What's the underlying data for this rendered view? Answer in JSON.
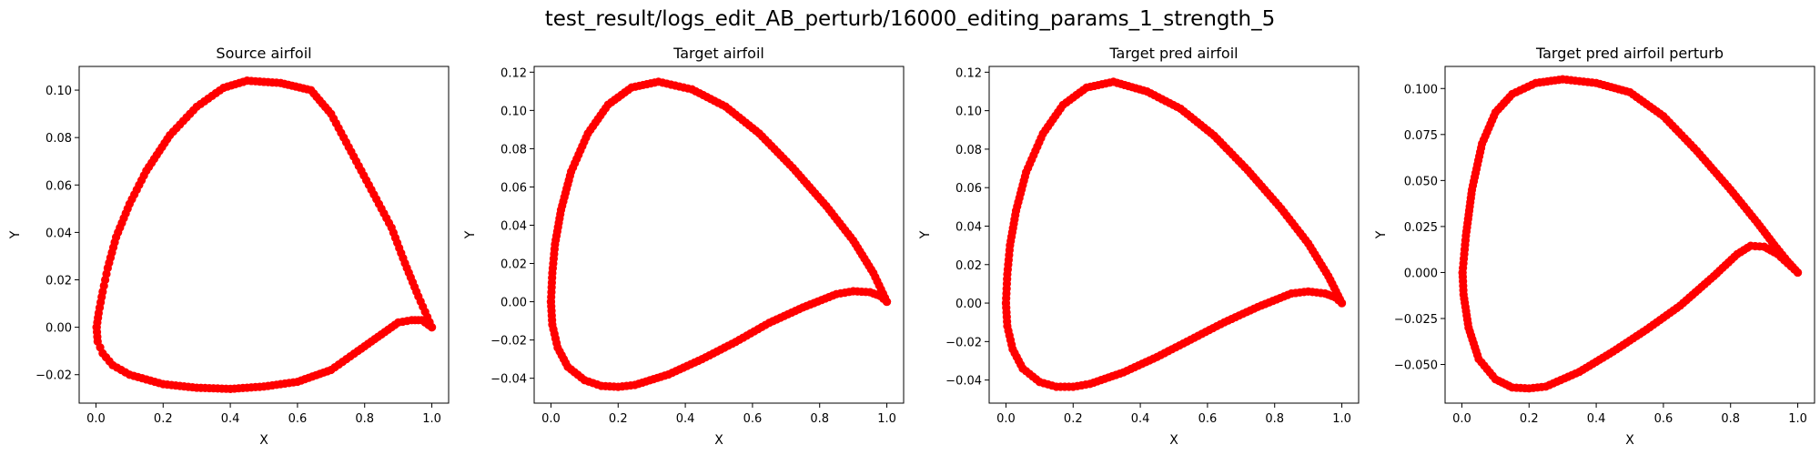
{
  "suptitle": "test_result/logs_edit_AB_perturb/16000_editing_params_1_strength_5",
  "chart_data": [
    {
      "type": "scatter",
      "title": "Source airfoil",
      "xlabel": "X",
      "ylabel": "Y",
      "xlim": [
        -0.05,
        1.05
      ],
      "ylim": [
        -0.032,
        0.11
      ],
      "xticks": [
        "0.0",
        "0.2",
        "0.4",
        "0.6",
        "0.8",
        "1.0"
      ],
      "yticks": [
        "−0.02",
        "0.00",
        "0.02",
        "0.04",
        "0.06",
        "0.08",
        "0.10"
      ],
      "color": "#ff0000",
      "upper": [
        [
          1.0,
          0.0
        ],
        [
          0.96,
          0.013
        ],
        [
          0.92,
          0.027
        ],
        [
          0.88,
          0.042
        ],
        [
          0.82,
          0.058
        ],
        [
          0.76,
          0.074
        ],
        [
          0.7,
          0.09
        ],
        [
          0.64,
          0.1
        ],
        [
          0.55,
          0.103
        ],
        [
          0.45,
          0.104
        ],
        [
          0.38,
          0.101
        ],
        [
          0.3,
          0.093
        ],
        [
          0.22,
          0.081
        ],
        [
          0.15,
          0.066
        ],
        [
          0.1,
          0.052
        ],
        [
          0.06,
          0.038
        ],
        [
          0.035,
          0.025
        ],
        [
          0.02,
          0.015
        ],
        [
          0.008,
          0.006
        ],
        [
          0.002,
          0.0
        ]
      ],
      "lower": [
        [
          0.002,
          0.0
        ],
        [
          0.005,
          -0.006
        ],
        [
          0.02,
          -0.011
        ],
        [
          0.05,
          -0.016
        ],
        [
          0.1,
          -0.02
        ],
        [
          0.2,
          -0.024
        ],
        [
          0.3,
          -0.0255
        ],
        [
          0.4,
          -0.026
        ],
        [
          0.5,
          -0.025
        ],
        [
          0.6,
          -0.023
        ],
        [
          0.7,
          -0.018
        ],
        [
          0.78,
          -0.01
        ],
        [
          0.85,
          -0.003
        ],
        [
          0.9,
          0.002
        ],
        [
          0.94,
          0.003
        ],
        [
          0.97,
          0.003
        ],
        [
          1.0,
          0.0
        ]
      ]
    },
    {
      "type": "scatter",
      "title": "Target airfoil",
      "xlabel": "X",
      "ylabel": "Y",
      "xlim": [
        -0.05,
        1.05
      ],
      "ylim": [
        -0.053,
        0.123
      ],
      "xticks": [
        "0.0",
        "0.2",
        "0.4",
        "0.6",
        "0.8",
        "1.0"
      ],
      "yticks": [
        "−0.04",
        "−0.02",
        "0.00",
        "0.02",
        "0.04",
        "0.06",
        "0.08",
        "0.10",
        "0.12"
      ],
      "color": "#ff0000",
      "upper": [
        [
          1.0,
          0.0
        ],
        [
          0.96,
          0.015
        ],
        [
          0.9,
          0.032
        ],
        [
          0.82,
          0.05
        ],
        [
          0.72,
          0.07
        ],
        [
          0.62,
          0.088
        ],
        [
          0.52,
          0.102
        ],
        [
          0.42,
          0.111
        ],
        [
          0.32,
          0.115
        ],
        [
          0.24,
          0.112
        ],
        [
          0.17,
          0.103
        ],
        [
          0.11,
          0.088
        ],
        [
          0.06,
          0.068
        ],
        [
          0.03,
          0.048
        ],
        [
          0.012,
          0.03
        ],
        [
          0.004,
          0.015
        ],
        [
          0.0,
          0.0
        ]
      ],
      "lower": [
        [
          0.0,
          0.0
        ],
        [
          0.004,
          -0.012
        ],
        [
          0.02,
          -0.024
        ],
        [
          0.05,
          -0.034
        ],
        [
          0.1,
          -0.041
        ],
        [
          0.15,
          -0.044
        ],
        [
          0.2,
          -0.0445
        ],
        [
          0.25,
          -0.0435
        ],
        [
          0.35,
          -0.038
        ],
        [
          0.45,
          -0.03
        ],
        [
          0.55,
          -0.021
        ],
        [
          0.65,
          -0.011
        ],
        [
          0.75,
          -0.003
        ],
        [
          0.85,
          0.004
        ],
        [
          0.9,
          0.0055
        ],
        [
          0.95,
          0.005
        ],
        [
          0.98,
          0.003
        ],
        [
          1.0,
          0.0
        ]
      ]
    },
    {
      "type": "scatter",
      "title": "Target pred airfoil",
      "xlabel": "X",
      "ylabel": "Y",
      "xlim": [
        -0.05,
        1.05
      ],
      "ylim": [
        -0.052,
        0.123
      ],
      "xticks": [
        "0.0",
        "0.2",
        "0.4",
        "0.6",
        "0.8",
        "1.0"
      ],
      "yticks": [
        "−0.04",
        "−0.02",
        "0.00",
        "0.02",
        "0.04",
        "0.06",
        "0.08",
        "0.10",
        "0.12"
      ],
      "color": "#ff0000",
      "upper": [
        [
          1.0,
          0.0
        ],
        [
          0.96,
          0.014
        ],
        [
          0.9,
          0.031
        ],
        [
          0.82,
          0.049
        ],
        [
          0.72,
          0.069
        ],
        [
          0.62,
          0.087
        ],
        [
          0.52,
          0.101
        ],
        [
          0.42,
          0.11
        ],
        [
          0.32,
          0.115
        ],
        [
          0.24,
          0.112
        ],
        [
          0.17,
          0.103
        ],
        [
          0.11,
          0.088
        ],
        [
          0.06,
          0.068
        ],
        [
          0.03,
          0.048
        ],
        [
          0.012,
          0.03
        ],
        [
          0.004,
          0.015
        ],
        [
          0.0,
          0.0
        ]
      ],
      "lower": [
        [
          0.0,
          0.0
        ],
        [
          0.004,
          -0.012
        ],
        [
          0.02,
          -0.024
        ],
        [
          0.05,
          -0.034
        ],
        [
          0.1,
          -0.041
        ],
        [
          0.15,
          -0.0435
        ],
        [
          0.2,
          -0.0435
        ],
        [
          0.25,
          -0.042
        ],
        [
          0.35,
          -0.036
        ],
        [
          0.45,
          -0.028
        ],
        [
          0.55,
          -0.019
        ],
        [
          0.65,
          -0.01
        ],
        [
          0.75,
          -0.002
        ],
        [
          0.85,
          0.005
        ],
        [
          0.9,
          0.006
        ],
        [
          0.95,
          0.005
        ],
        [
          0.98,
          0.003
        ],
        [
          1.0,
          0.0
        ]
      ]
    },
    {
      "type": "scatter",
      "title": "Target pred airfoil perturb",
      "xlabel": "X",
      "ylabel": "Y",
      "xlim": [
        -0.05,
        1.05
      ],
      "ylim": [
        -0.071,
        0.112
      ],
      "xticks": [
        "0.0",
        "0.2",
        "0.4",
        "0.6",
        "0.8",
        "1.0"
      ],
      "yticks": [
        "−0.050",
        "−0.025",
        "0.000",
        "0.025",
        "0.050",
        "0.075",
        "0.100"
      ],
      "color": "#ff0000",
      "upper": [
        [
          1.0,
          0.0
        ],
        [
          0.97,
          0.006
        ],
        [
          0.93,
          0.015
        ],
        [
          0.88,
          0.027
        ],
        [
          0.8,
          0.045
        ],
        [
          0.7,
          0.066
        ],
        [
          0.6,
          0.085
        ],
        [
          0.5,
          0.098
        ],
        [
          0.4,
          0.103
        ],
        [
          0.3,
          0.105
        ],
        [
          0.22,
          0.103
        ],
        [
          0.15,
          0.097
        ],
        [
          0.1,
          0.087
        ],
        [
          0.06,
          0.07
        ],
        [
          0.03,
          0.045
        ],
        [
          0.012,
          0.02
        ],
        [
          0.002,
          0.0
        ]
      ],
      "lower": [
        [
          0.002,
          0.0
        ],
        [
          0.005,
          -0.012
        ],
        [
          0.02,
          -0.03
        ],
        [
          0.05,
          -0.047
        ],
        [
          0.1,
          -0.058
        ],
        [
          0.15,
          -0.0625
        ],
        [
          0.2,
          -0.063
        ],
        [
          0.25,
          -0.062
        ],
        [
          0.35,
          -0.054
        ],
        [
          0.45,
          -0.043
        ],
        [
          0.55,
          -0.031
        ],
        [
          0.65,
          -0.018
        ],
        [
          0.75,
          -0.002
        ],
        [
          0.82,
          0.01
        ],
        [
          0.86,
          0.0145
        ],
        [
          0.9,
          0.014
        ],
        [
          0.94,
          0.01
        ],
        [
          0.97,
          0.005
        ],
        [
          1.0,
          0.0
        ]
      ]
    }
  ]
}
